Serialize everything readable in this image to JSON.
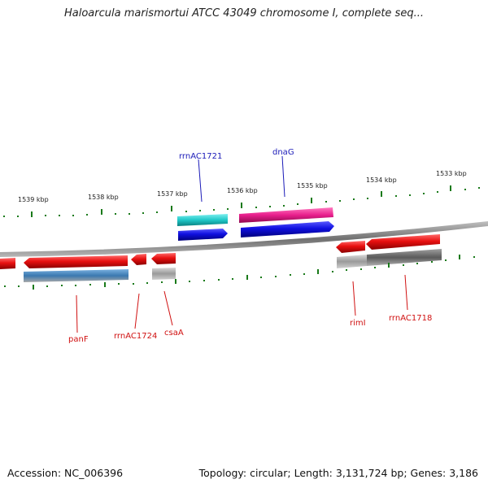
{
  "title": "Haloarcula marismortui ATCC 43049 chromosome I, complete seq...",
  "footer": {
    "accession": "Accession: NC_006396",
    "summary": "Topology: circular; Length: 3,131,724 bp; Genes: 3,186"
  },
  "ruler": [
    "1539 kbp",
    "1538 kbp",
    "1537 kbp",
    "1536 kbp",
    "1535 kbp",
    "1534 kbp",
    "1533 kbp"
  ],
  "genes": {
    "rrnAC1721": "rrnAC1721",
    "dnaG": "dnaG",
    "panF": "panF",
    "rrnAC1724": "rrnAC1724",
    "csaA": "csaA",
    "rimI": "rimI",
    "rrnAC1718": "rrnAC1718"
  },
  "colors": {
    "forward_cds": "#1010e0",
    "reverse_cds": "#e81010",
    "teal_feature": "#20c8c8",
    "pink_feature": "#e81e8c",
    "steel_feature": "#3a78b0",
    "grey_feature": "#9a9a9a",
    "dark_grey_feature": "#606060",
    "tick_green": "#1a7a1a",
    "backbone": "#808080"
  }
}
